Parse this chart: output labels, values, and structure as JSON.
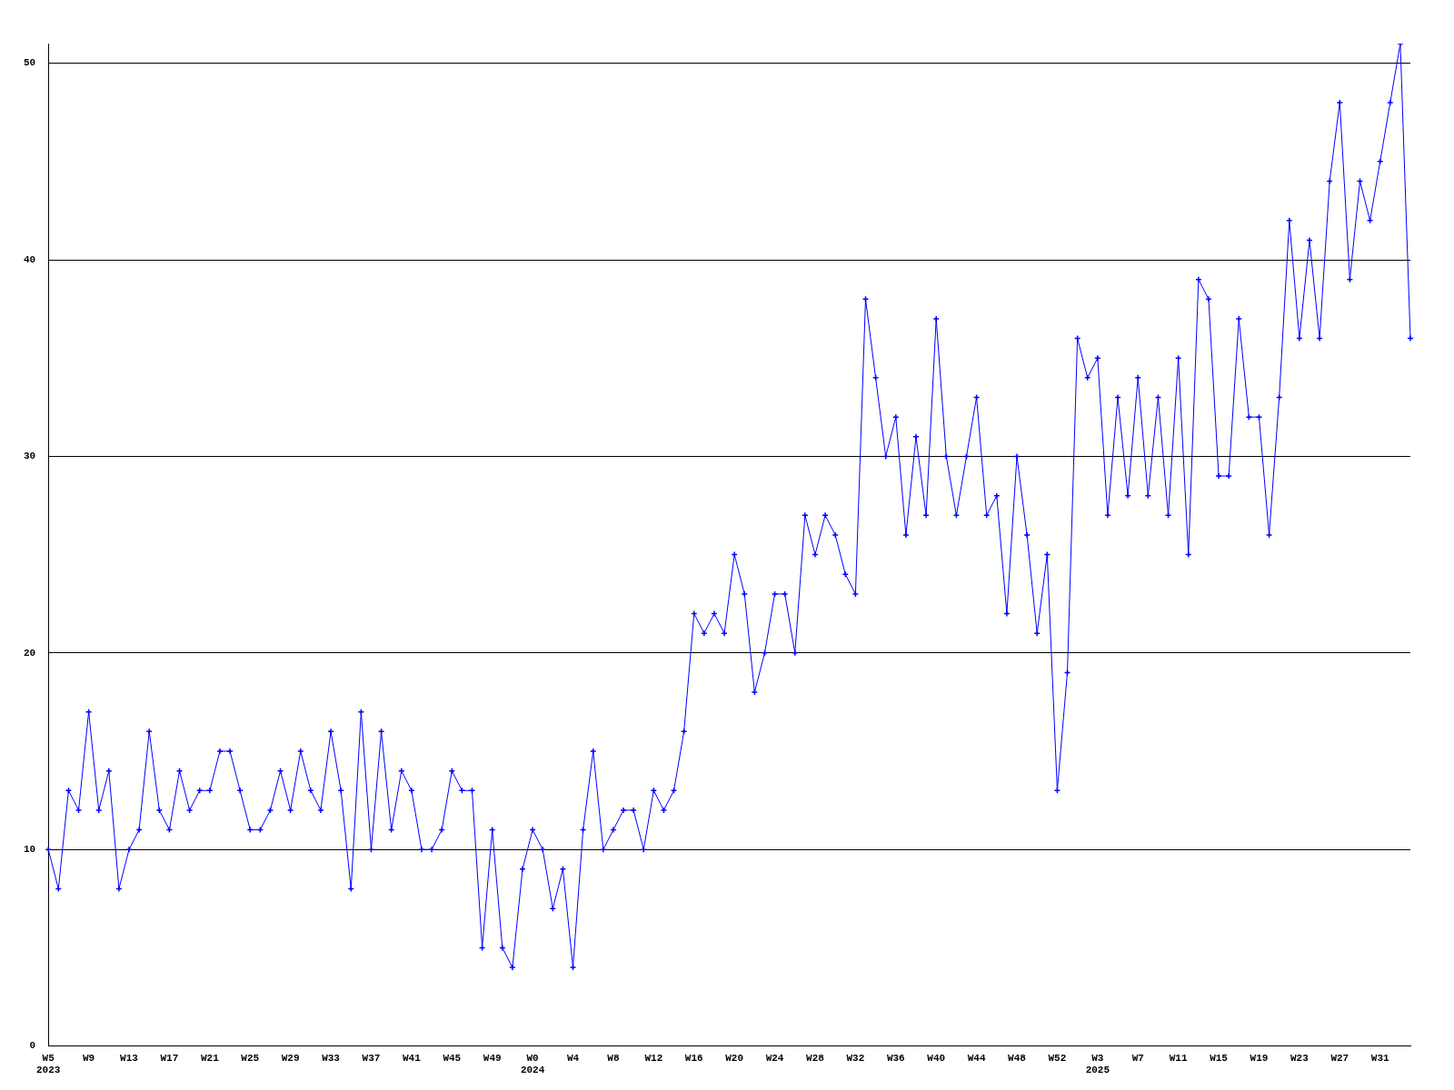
{
  "chart_data": {
    "type": "line",
    "categories": [
      "W5\n2023",
      null,
      null,
      null,
      "W9",
      null,
      null,
      null,
      "W13",
      null,
      null,
      null,
      "W17",
      null,
      null,
      null,
      "W21",
      null,
      null,
      null,
      "W25",
      null,
      null,
      null,
      "W29",
      null,
      null,
      null,
      "W33",
      null,
      null,
      null,
      "W37",
      null,
      null,
      null,
      "W41",
      null,
      null,
      null,
      "W45",
      null,
      null,
      null,
      "W49",
      null,
      null,
      null,
      "W0\n2024",
      null,
      null,
      null,
      "W4",
      null,
      null,
      null,
      "W8",
      null,
      null,
      null,
      "W12",
      null,
      null,
      null,
      "W16",
      null,
      null,
      null,
      "W20",
      null,
      null,
      null,
      "W24",
      null,
      null,
      null,
      "W28",
      null,
      null,
      null,
      "W32",
      null,
      null,
      null,
      "W36",
      null,
      null,
      null,
      "W40",
      null,
      null,
      null,
      "W44",
      null,
      null,
      null,
      "W48",
      null,
      null,
      null,
      "W52",
      null,
      null,
      null,
      "W3\n2025",
      null,
      null,
      null,
      "W7",
      null,
      null,
      null,
      "W11",
      null,
      null,
      null,
      "W15",
      null,
      null,
      null,
      "W19",
      null,
      null,
      null,
      "W23",
      null,
      null,
      null,
      "W27",
      null,
      null,
      null,
      "W31",
      null,
      null,
      null
    ],
    "series": [
      {
        "color": "#0000ff",
        "values": [
          10,
          8,
          13,
          12,
          17,
          12,
          14,
          8,
          10,
          11,
          16,
          12,
          11,
          14,
          12,
          13,
          13,
          15,
          15,
          13,
          11,
          11,
          12,
          14,
          12,
          15,
          13,
          12,
          16,
          13,
          8,
          17,
          10,
          16,
          11,
          14,
          13,
          10,
          10,
          11,
          14,
          13,
          13,
          5,
          11,
          5,
          4,
          9,
          11,
          10,
          7,
          9,
          4,
          11,
          15,
          10,
          11,
          12,
          12,
          10,
          13,
          12,
          13,
          16,
          22,
          21,
          22,
          21,
          25,
          23,
          18,
          20,
          23,
          23,
          20,
          27,
          25,
          27,
          26,
          24,
          23,
          38,
          34,
          30,
          32,
          26,
          31,
          27,
          37,
          30,
          27,
          30,
          33,
          27,
          28,
          22,
          30,
          26,
          21,
          25,
          13,
          19,
          36,
          34,
          35,
          27,
          33,
          28,
          34,
          28,
          33,
          27,
          35,
          25,
          39,
          38,
          29,
          29,
          37,
          32,
          32,
          26,
          33,
          42,
          36,
          41,
          36,
          44,
          48,
          39,
          44,
          42,
          45,
          48,
          51,
          36
        ]
      }
    ],
    "ylim": [
      0,
      51
    ],
    "yticks": [
      0,
      10,
      20,
      30,
      40,
      50
    ],
    "grid": "y",
    "marker": "cross",
    "legend": false
  }
}
